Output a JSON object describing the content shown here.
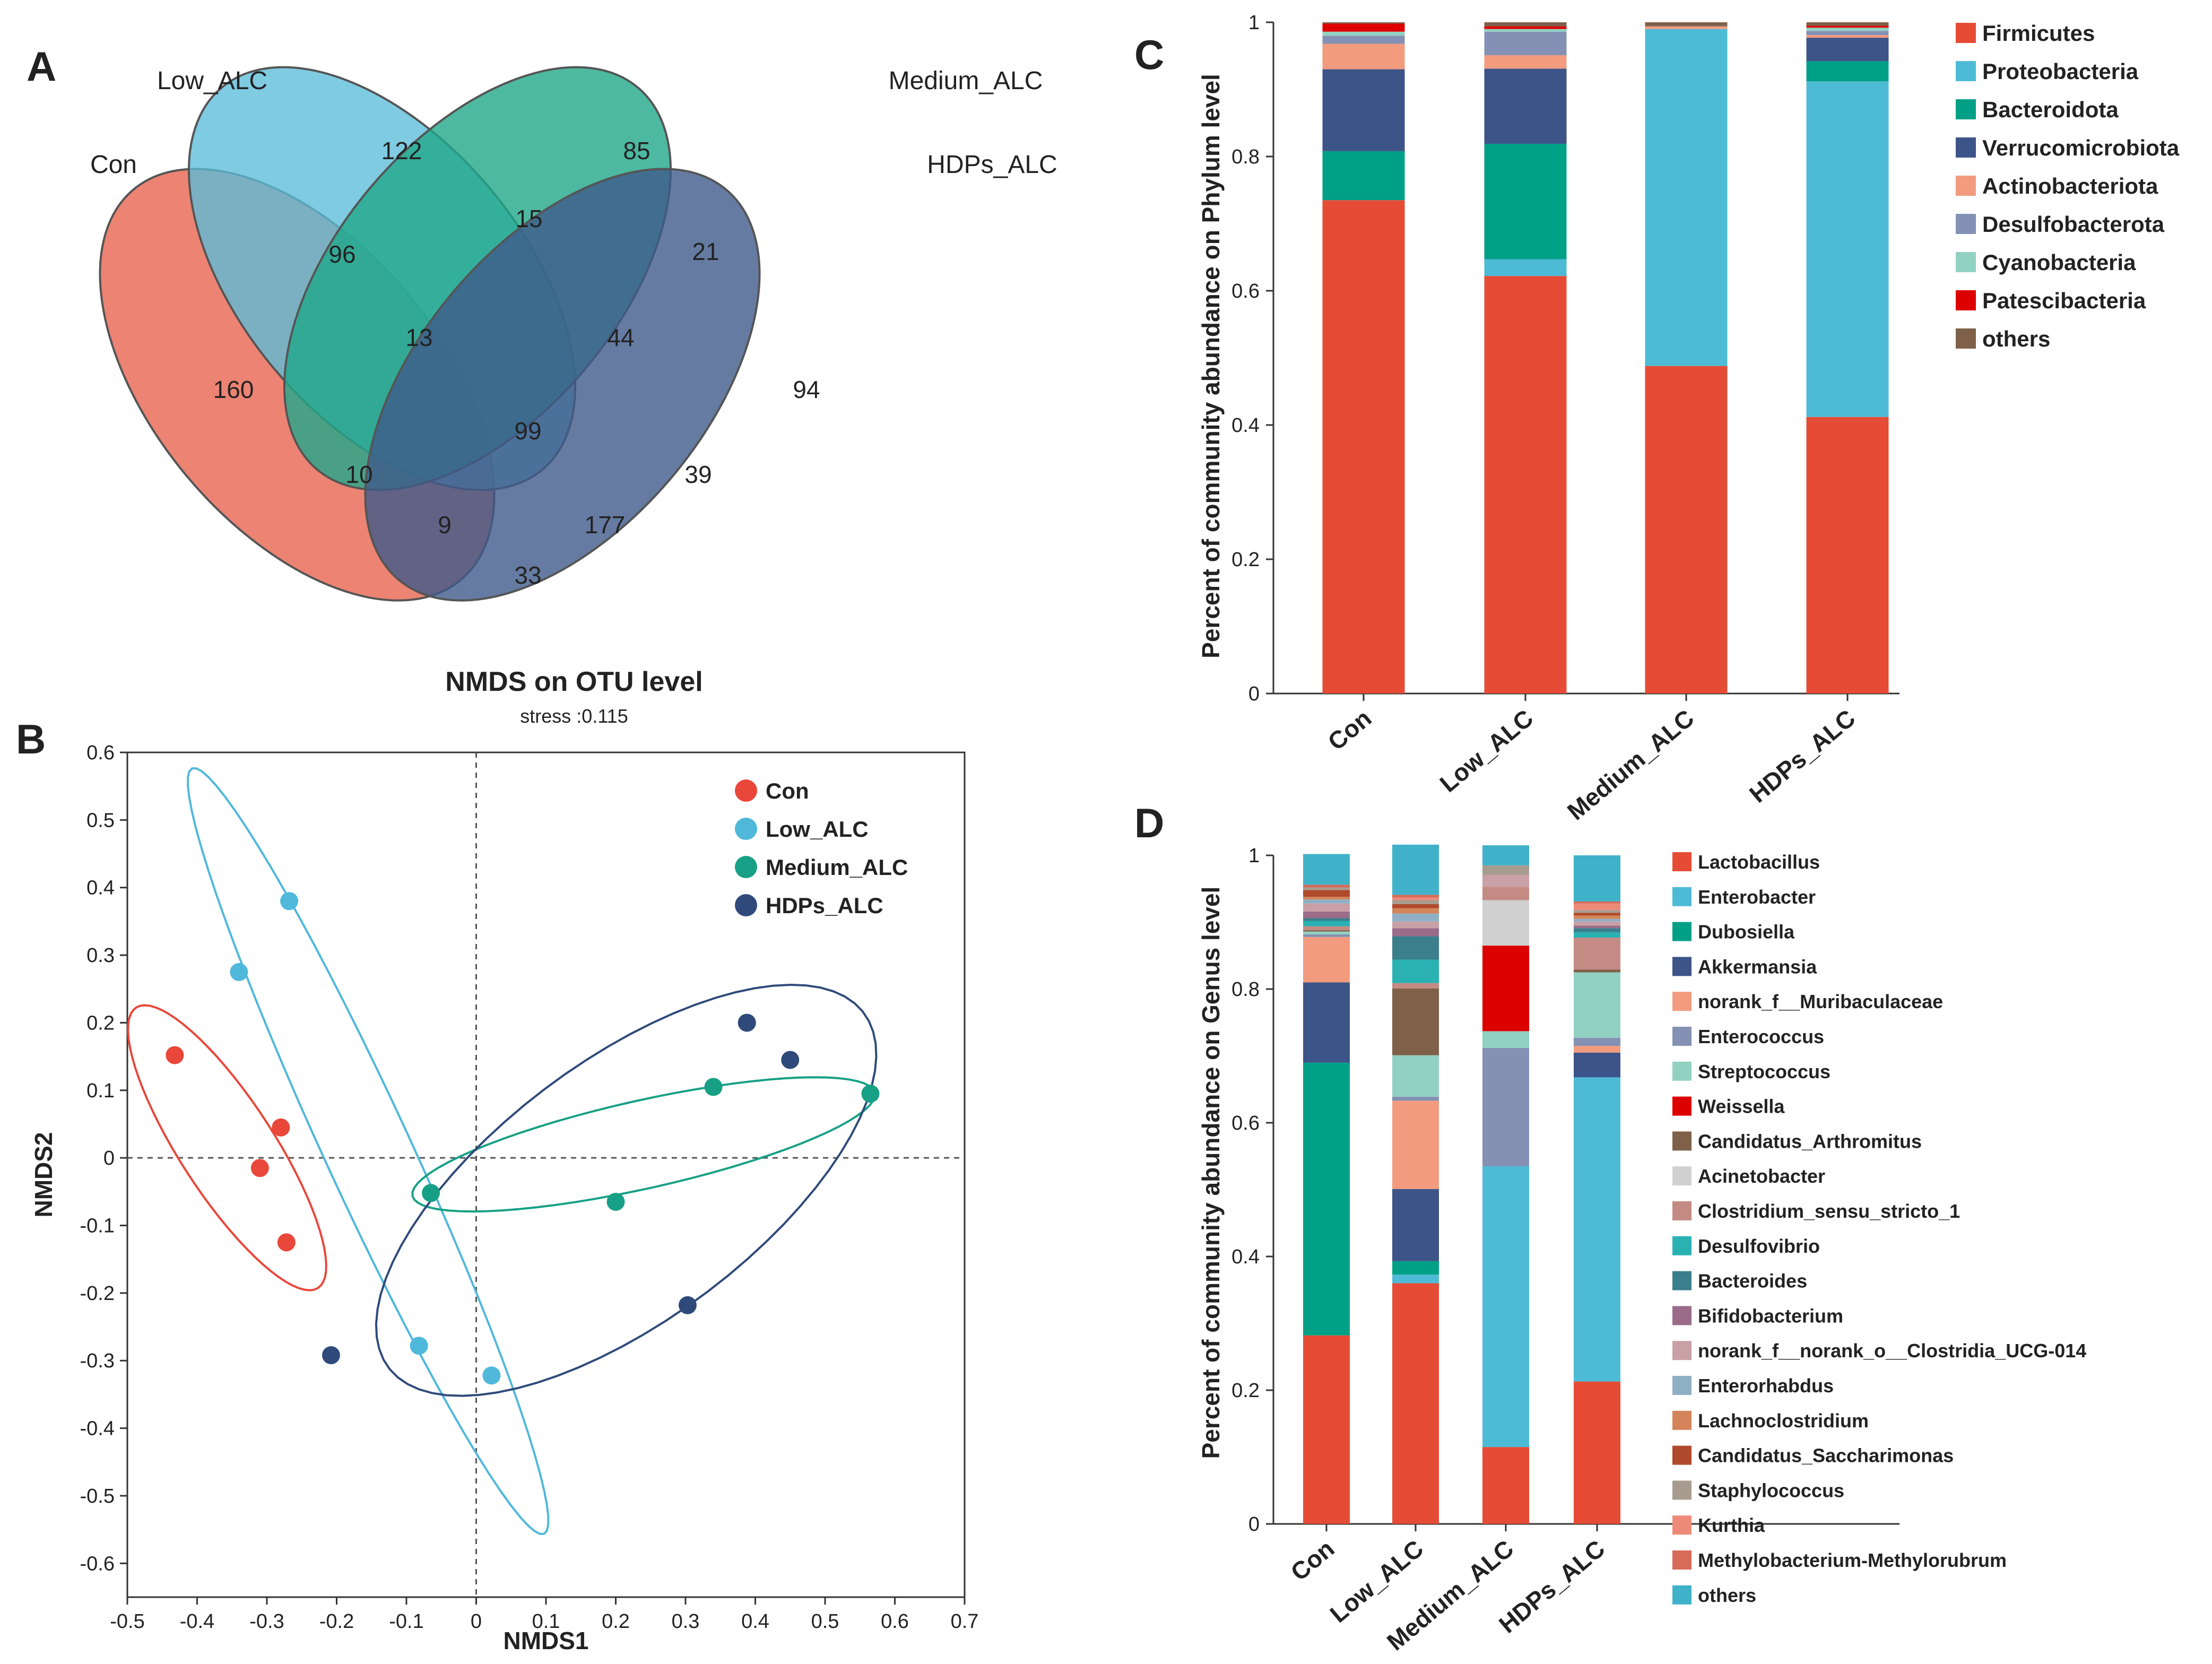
{
  "panels": {
    "A": "A",
    "B": "B",
    "C": "C",
    "D": "D"
  },
  "chart_data": [
    {
      "panel": "A",
      "type": "venn",
      "sets": [
        {
          "name": "Con",
          "color": "#e8604c"
        },
        {
          "name": "Low_ALC",
          "color": "#5bbcd8"
        },
        {
          "name": "Medium_ALC",
          "color": "#21a88a"
        },
        {
          "name": "HDPs_ALC",
          "color": "#3f5a8a"
        }
      ],
      "region_counts": [
        {
          "sets": [
            "Con"
          ],
          "value": 160
        },
        {
          "sets": [
            "Low_ALC"
          ],
          "value": 122
        },
        {
          "sets": [
            "Medium_ALC"
          ],
          "value": 85
        },
        {
          "sets": [
            "HDPs_ALC"
          ],
          "value": 94
        },
        {
          "sets": [
            "Con",
            "Low_ALC"
          ],
          "value": 96
        },
        {
          "sets": [
            "Low_ALC",
            "Medium_ALC"
          ],
          "value": 15
        },
        {
          "sets": [
            "Medium_ALC",
            "HDPs_ALC"
          ],
          "value": 21
        },
        {
          "sets": [
            "Con",
            "Low_ALC",
            "Medium_ALC"
          ],
          "value": 13
        },
        {
          "sets": [
            "Low_ALC",
            "Medium_ALC",
            "HDPs_ALC"
          ],
          "value": 44
        },
        {
          "sets": [
            "Con",
            "Low_ALC",
            "Medium_ALC",
            "HDPs_ALC"
          ],
          "value": 99
        },
        {
          "sets": [
            "Con",
            "Medium_ALC"
          ],
          "value": 10
        },
        {
          "sets": [
            "Low_ALC",
            "HDPs_ALC"
          ],
          "value": 39
        },
        {
          "sets": [
            "Con",
            "Medium_ALC",
            "HDPs_ALC"
          ],
          "value": 9
        },
        {
          "sets": [
            "Con",
            "Low_ALC",
            "HDPs_ALC"
          ],
          "value": 177
        },
        {
          "sets": [
            "Con",
            "HDPs_ALC"
          ],
          "value": 33
        }
      ]
    },
    {
      "panel": "B",
      "type": "scatter",
      "title": "NMDS on OTU level",
      "subtitle": "stress :0.115",
      "xlabel": "NMDS1",
      "ylabel": "NMDS2",
      "xlim": [
        -0.5,
        0.7
      ],
      "ylim": [
        -0.65,
        0.6
      ],
      "xticks": [
        "-0.5",
        "-0.4",
        "-0.3",
        "-0.2",
        "-0.1",
        "0",
        "0.1",
        "0.2",
        "0.3",
        "0.4",
        "0.5",
        "0.6",
        "0.7"
      ],
      "yticks": [
        "0.6",
        "0.5",
        "0.4",
        "0.3",
        "0.2",
        "0.1",
        "0",
        "-0.1",
        "-0.2",
        "-0.3",
        "-0.4",
        "-0.5",
        "-0.6"
      ],
      "legend_position": "top-right",
      "series": [
        {
          "name": "Con",
          "color": "#e8473a",
          "points": [
            [
              -0.432,
              0.152
            ],
            [
              -0.28,
              0.045
            ],
            [
              -0.31,
              -0.015
            ],
            [
              -0.272,
              -0.125
            ]
          ]
        },
        {
          "name": "Low_ALC",
          "color": "#4fb8db",
          "points": [
            [
              -0.268,
              0.38
            ],
            [
              -0.34,
              0.275
            ],
            [
              -0.082,
              -0.278
            ],
            [
              0.022,
              -0.322
            ]
          ]
        },
        {
          "name": "Medium_ALC",
          "color": "#17a085",
          "points": [
            [
              -0.065,
              -0.052
            ],
            [
              0.2,
              -0.065
            ],
            [
              0.34,
              0.105
            ],
            [
              0.565,
              0.095
            ]
          ]
        },
        {
          "name": "HDPs_ALC",
          "color": "#2f4a7a",
          "points": [
            [
              0.388,
              0.2
            ],
            [
              0.45,
              0.145
            ],
            [
              0.303,
              -0.218
            ],
            [
              -0.208,
              -0.292
            ]
          ]
        }
      ]
    },
    {
      "panel": "C",
      "type": "bar",
      "stacked": true,
      "ylabel": "Percent of community abundance on Phylum level",
      "ylim": [
        0,
        1
      ],
      "yticks": [
        "0",
        "0.2",
        "0.4",
        "0.6",
        "0.8",
        "1"
      ],
      "categories": [
        "Con",
        "Low_ALC",
        "Medium_ALC",
        "HDPs_ALC"
      ],
      "legend_position": "right",
      "series": [
        {
          "name": "Firmicutes",
          "color": "#e64b35",
          "values": [
            0.735,
            0.622,
            0.488,
            0.412
          ]
        },
        {
          "name": "Proteobacteria",
          "color": "#4dbbd5",
          "values": [
            0.0,
            0.025,
            0.502,
            0.5
          ]
        },
        {
          "name": "Bacteroidota",
          "color": "#00a087",
          "values": [
            0.073,
            0.172,
            0.0,
            0.03
          ]
        },
        {
          "name": "Verrucomicrobiota",
          "color": "#3c5488",
          "values": [
            0.122,
            0.112,
            0.0,
            0.035
          ]
        },
        {
          "name": "Actinobacteriota",
          "color": "#f39b7f",
          "values": [
            0.038,
            0.02,
            0.004,
            0.004
          ]
        },
        {
          "name": "Desulfobacterota",
          "color": "#8491b4",
          "values": [
            0.012,
            0.035,
            0.0,
            0.006
          ]
        },
        {
          "name": "Cyanobacteria",
          "color": "#91d1c2",
          "values": [
            0.006,
            0.004,
            0.0,
            0.005
          ]
        },
        {
          "name": "Patescibacteria",
          "color": "#dc0000",
          "values": [
            0.012,
            0.004,
            0.0,
            0.003
          ]
        },
        {
          "name": "others",
          "color": "#7e6148",
          "values": [
            0.002,
            0.006,
            0.006,
            0.005
          ]
        }
      ]
    },
    {
      "panel": "D",
      "type": "bar",
      "stacked": true,
      "ylabel": "Percent of community abundance on Genus level",
      "ylim": [
        0,
        1
      ],
      "yticks": [
        "0",
        "0.2",
        "0.4",
        "0.6",
        "0.8",
        "1"
      ],
      "categories": [
        "Con",
        "Low_ALC",
        "Medium_ALC",
        "HDPs_ALC"
      ],
      "legend_position": "right",
      "series": [
        {
          "name": "Lactobacillus",
          "color": "#e64b35",
          "values": [
            0.282,
            0.36,
            0.115,
            0.213
          ]
        },
        {
          "name": "Enterobacter",
          "color": "#4dbbd5",
          "values": [
            0.0,
            0.013,
            0.42,
            0.455
          ]
        },
        {
          "name": "Dubosiella",
          "color": "#00a087",
          "values": [
            0.408,
            0.02,
            0.0,
            0.0
          ]
        },
        {
          "name": "Akkermansia",
          "color": "#3c5488",
          "values": [
            0.12,
            0.108,
            0.0,
            0.037
          ]
        },
        {
          "name": "norank_f__Muribaculaceae",
          "color": "#f39b7f",
          "values": [
            0.068,
            0.132,
            0.0,
            0.01
          ]
        },
        {
          "name": "Enterococcus",
          "color": "#8491b4",
          "values": [
            0.004,
            0.006,
            0.177,
            0.012
          ]
        },
        {
          "name": "Streptococcus",
          "color": "#91d1c2",
          "values": [
            0.004,
            0.062,
            0.025,
            0.098
          ]
        },
        {
          "name": "Weissella",
          "color": "#dc0000",
          "values": [
            0.0,
            0.0,
            0.128,
            0.0
          ]
        },
        {
          "name": "Candidatus_Arthromitus",
          "color": "#7e6148",
          "values": [
            0.002,
            0.1,
            0.0,
            0.004
          ]
        },
        {
          "name": "Acinetobacter",
          "color": "#d0d0d0",
          "values": [
            0.0,
            0.0,
            0.068,
            0.0
          ]
        },
        {
          "name": "Clostridium_sensu_stricto_1",
          "color": "#c48a84",
          "values": [
            0.006,
            0.008,
            0.02,
            0.048
          ]
        },
        {
          "name": "Desulfovibrio",
          "color": "#2ab2b3",
          "values": [
            0.008,
            0.035,
            0.0,
            0.008
          ]
        },
        {
          "name": "Bacteroides",
          "color": "#3b7e8c",
          "values": [
            0.004,
            0.035,
            0.0,
            0.006
          ]
        },
        {
          "name": "Bifidobacterium",
          "color": "#9a6c8a",
          "values": [
            0.01,
            0.012,
            0.0,
            0.004
          ]
        },
        {
          "name": "norank_f__norank_o__Clostridia_UCG-014",
          "color": "#c9a0a6",
          "values": [
            0.012,
            0.01,
            0.018,
            0.006
          ]
        },
        {
          "name": "Enterorhabdus",
          "color": "#8fb0c4",
          "values": [
            0.006,
            0.012,
            0.0,
            0.004
          ]
        },
        {
          "name": "Lachnoclostridium",
          "color": "#d4845a",
          "values": [
            0.004,
            0.008,
            0.0,
            0.005
          ]
        },
        {
          "name": "Candidatus_Saccharimonas",
          "color": "#b04a2c",
          "values": [
            0.01,
            0.006,
            0.0,
            0.004
          ]
        },
        {
          "name": "Staphylococcus",
          "color": "#a89c90",
          "values": [
            0.004,
            0.006,
            0.014,
            0.004
          ]
        },
        {
          "name": "Kurthia",
          "color": "#ee8a78",
          "values": [
            0.0,
            0.004,
            0.0,
            0.01
          ]
        },
        {
          "name": "Methylobacterium-Methylorubrum",
          "color": "#d86a5a",
          "values": [
            0.004,
            0.004,
            0.0,
            0.003
          ]
        },
        {
          "name": "others",
          "color": "#3fb2c9",
          "values": [
            0.046,
            0.075,
            0.03,
            0.069
          ]
        }
      ]
    }
  ]
}
